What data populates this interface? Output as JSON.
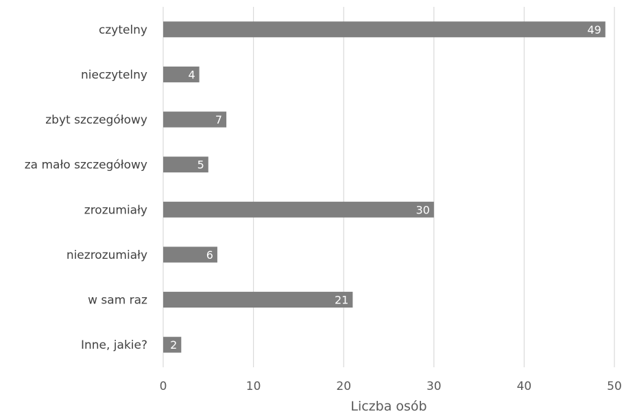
{
  "chart_data": {
    "type": "bar",
    "orientation": "horizontal",
    "categories": [
      "czytelny",
      "nieczytelny",
      "zbyt szczegółowy",
      "za mało szczegółowy",
      "zrozumiały",
      "niezrozumiały",
      "w sam raz",
      "Inne, jakie?"
    ],
    "values": [
      49,
      4,
      7,
      5,
      30,
      6,
      21,
      2
    ],
    "data_labels": [
      "49",
      "4",
      "7",
      "5",
      "30",
      "6",
      "21",
      "2"
    ],
    "xlabel": "Liczba osób",
    "ylabel": "",
    "xlim": [
      0,
      50
    ],
    "x_ticks": [
      "0",
      "10",
      "20",
      "30",
      "40",
      "50"
    ],
    "grid": "vertical",
    "legend": "none",
    "bar_color": "#7f7f7f"
  }
}
